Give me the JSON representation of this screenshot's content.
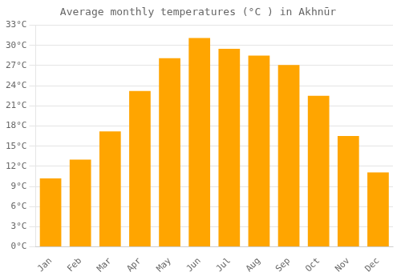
{
  "chart_data": {
    "type": "bar",
    "title": "Average monthly temperatures (°C ) in Akhnūr",
    "categories": [
      "Jan",
      "Feb",
      "Mar",
      "Apr",
      "May",
      "Jun",
      "Jul",
      "Aug",
      "Sep",
      "Oct",
      "Nov",
      "Dec"
    ],
    "values": [
      10.2,
      13.0,
      17.2,
      23.2,
      28.1,
      31.1,
      29.5,
      28.5,
      27.1,
      22.5,
      16.5,
      11.1
    ],
    "color": "#FFA500",
    "ylim": [
      0,
      33
    ],
    "yticks": [
      {
        "value": 0,
        "label": "0°C"
      },
      {
        "value": 3,
        "label": "3°C"
      },
      {
        "value": 6,
        "label": "6°C"
      },
      {
        "value": 9,
        "label": "9°C"
      },
      {
        "value": 12,
        "label": "12°C"
      },
      {
        "value": 15,
        "label": "15°C"
      },
      {
        "value": 18,
        "label": "18°C"
      },
      {
        "value": 21,
        "label": "21°C"
      },
      {
        "value": 24,
        "label": "24°C"
      },
      {
        "value": 27,
        "label": "27°C"
      },
      {
        "value": 30,
        "label": "30°C"
      },
      {
        "value": 33,
        "label": "33°C"
      }
    ],
    "grid": true
  }
}
